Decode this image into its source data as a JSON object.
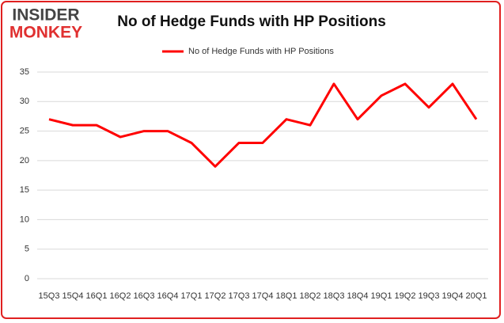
{
  "chart_data": {
    "type": "line",
    "title": "No of Hedge Funds with HP Positions",
    "logo": [
      "INSIDER",
      "MONKEY"
    ],
    "categories": [
      "15Q3",
      "15Q4",
      "16Q1",
      "16Q2",
      "16Q3",
      "16Q4",
      "17Q1",
      "17Q2",
      "17Q3",
      "17Q4",
      "18Q1",
      "18Q2",
      "18Q3",
      "18Q4",
      "19Q1",
      "19Q2",
      "19Q3",
      "19Q4",
      "20Q1"
    ],
    "series": [
      {
        "name": "No of Hedge Funds with HP Positions",
        "color": "#ff0000",
        "values": [
          27,
          26,
          26,
          24,
          25,
          25,
          23,
          19,
          23,
          23,
          27,
          26,
          33,
          27,
          31,
          33,
          29,
          33,
          27
        ]
      }
    ],
    "ylim": [
      0,
      35
    ],
    "yticks": [
      0,
      5,
      10,
      15,
      20,
      25,
      30,
      35
    ],
    "grid": true,
    "legend": "top"
  }
}
